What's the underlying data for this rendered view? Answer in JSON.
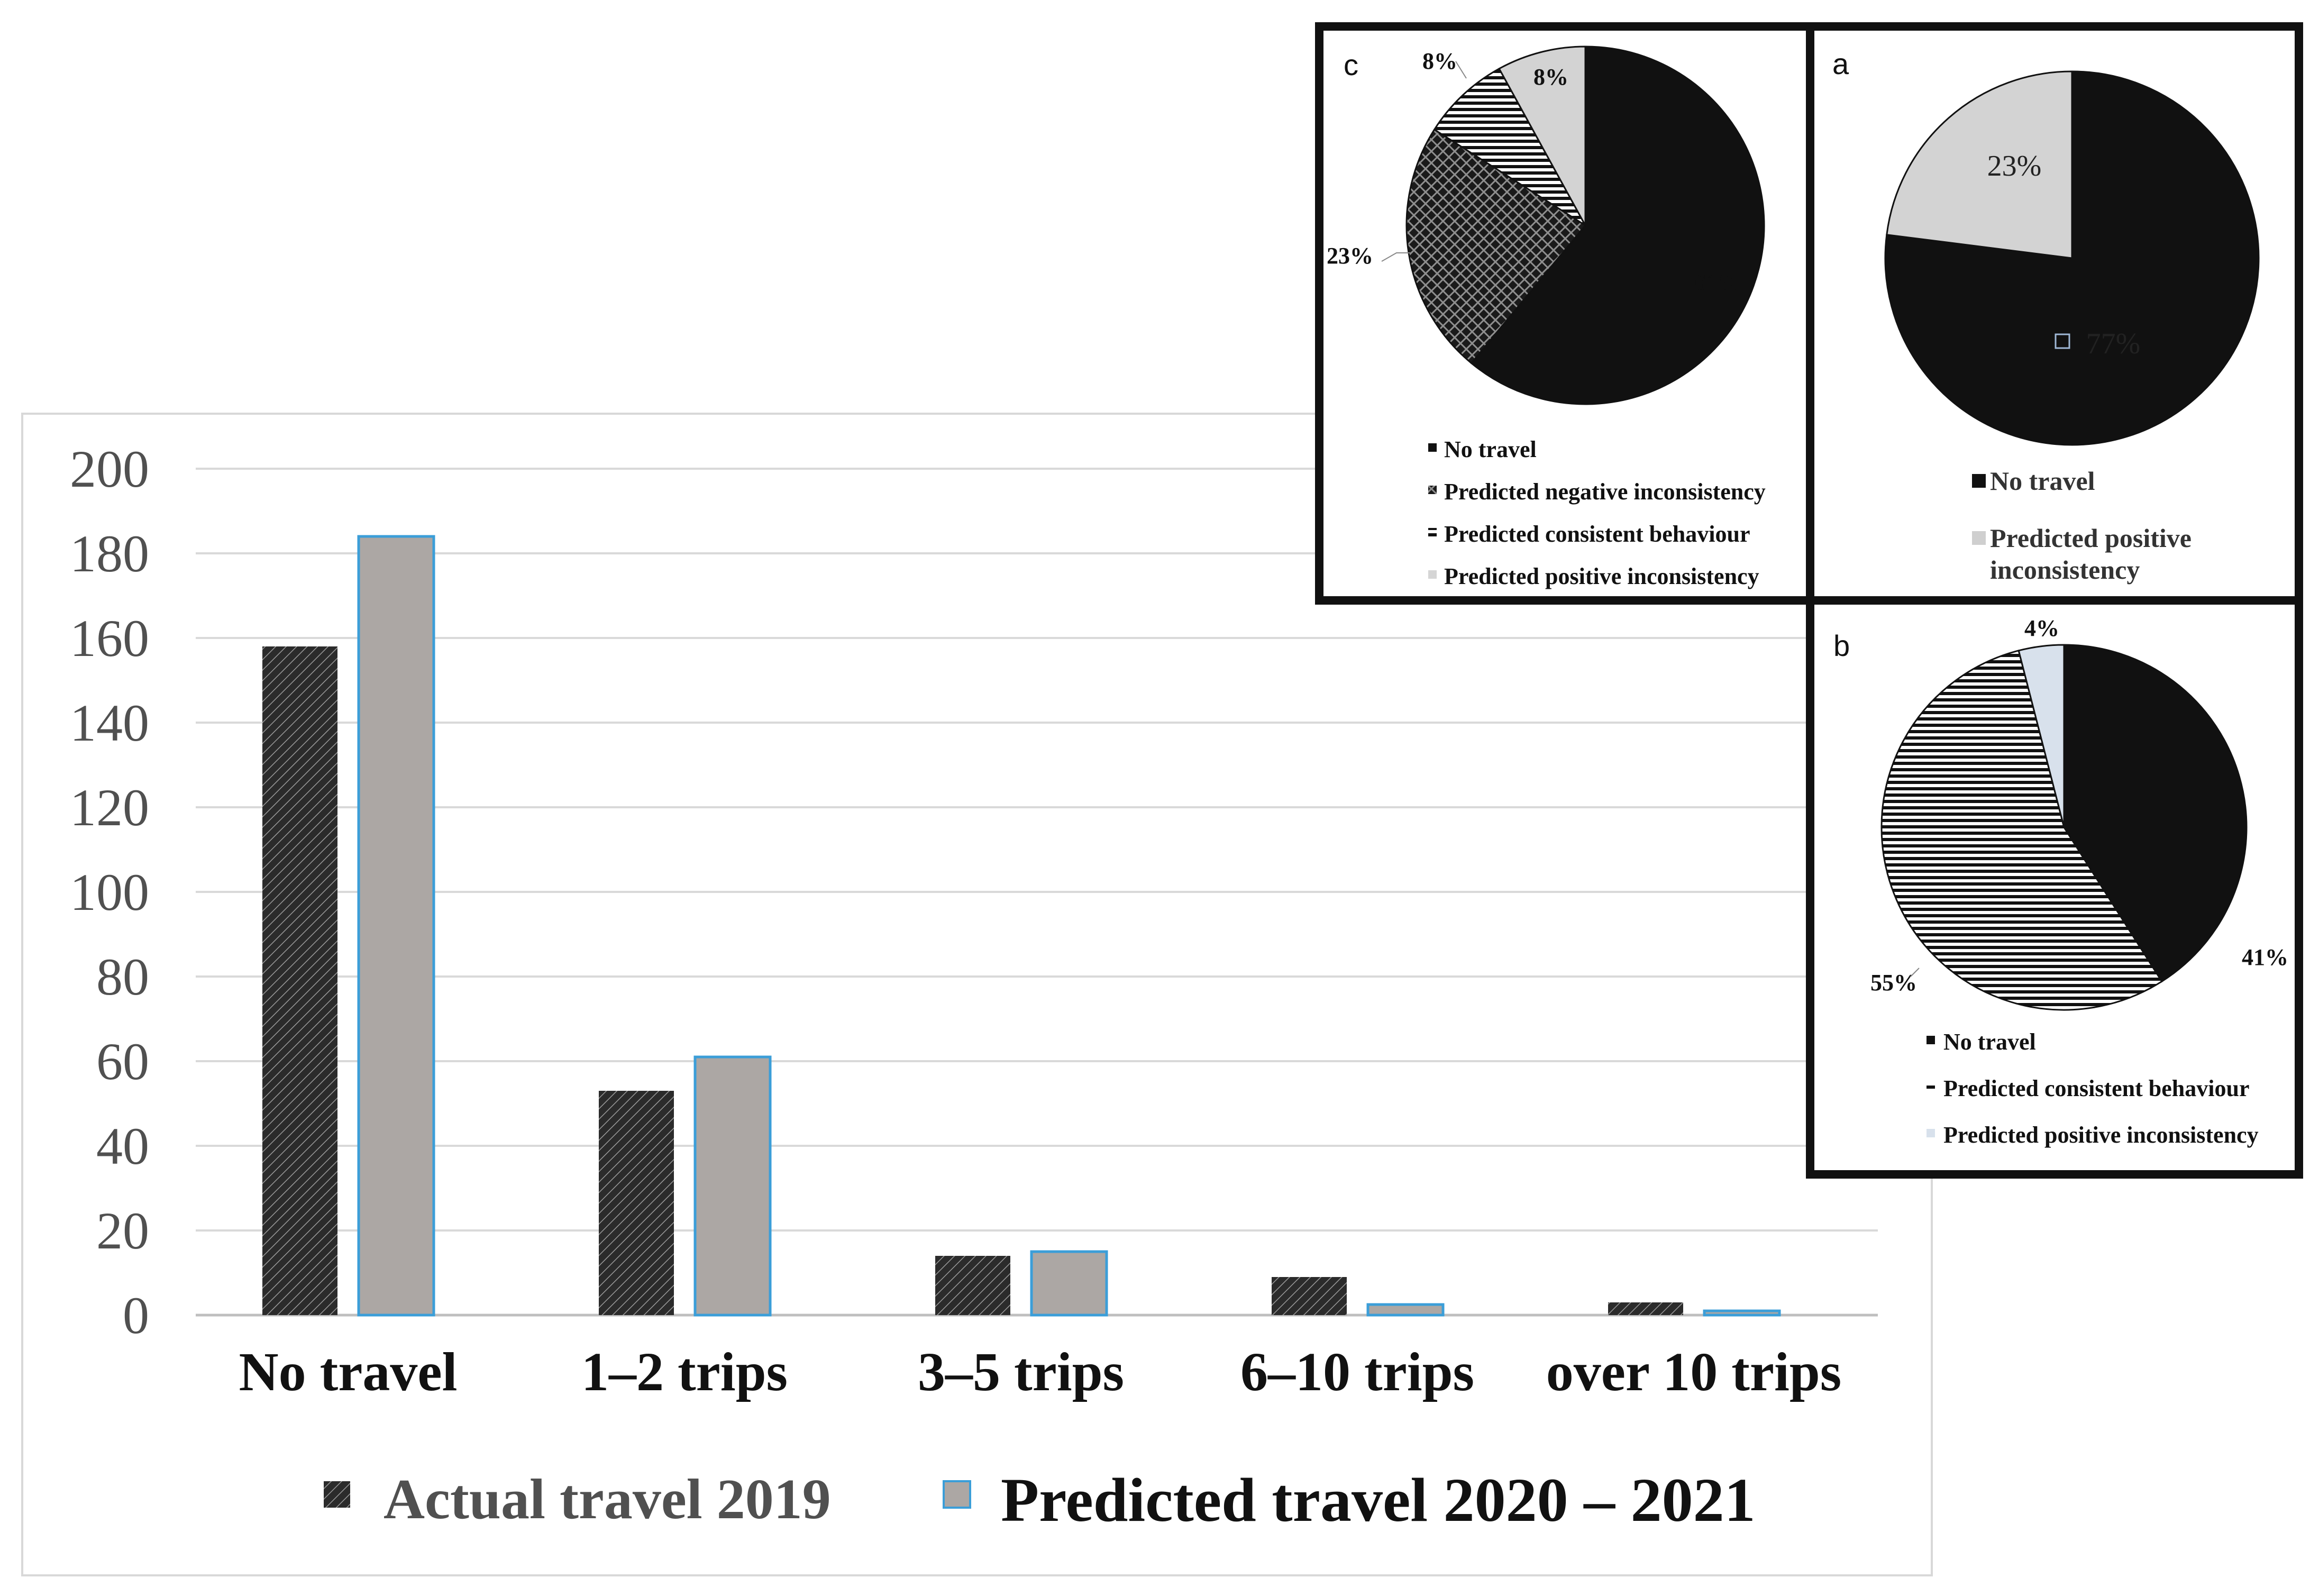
{
  "chart_data": [
    {
      "type": "bar",
      "categories": [
        "No travel",
        "1–2 trips",
        "3–5 trips",
        "6–10 trips",
        "over 10 trips"
      ],
      "series": [
        {
          "name": "Actual travel 2019",
          "values": [
            158,
            53,
            14,
            9,
            3
          ],
          "color": "#2b2b2b",
          "pattern": "diagonal-hatch"
        },
        {
          "name": "Predicted travel 2020 – 2021",
          "values": [
            184,
            61,
            15,
            2.5,
            1
          ],
          "color": "#aca7a4",
          "stroke": "#3b9ed8"
        }
      ],
      "y_ticks": [
        "0",
        "20",
        "40",
        "60",
        "80",
        "100",
        "120",
        "140",
        "160",
        "180",
        "200"
      ],
      "ylim": [
        0,
        200
      ],
      "grid": true,
      "legend": "bottom"
    },
    {
      "type": "pie",
      "panel": "c",
      "slices": [
        {
          "name": "No travel",
          "value": 61,
          "label": "61%",
          "fill": "black"
        },
        {
          "name": "Predicted negative inconsistency",
          "value": 23,
          "label": "23%",
          "fill": "crosshatch"
        },
        {
          "name": "Predicted consistent behaviour",
          "value": 8,
          "label": "8%",
          "fill": "stripes"
        },
        {
          "name": "Predicted positive inconsistency",
          "value": 8,
          "label": "8%",
          "fill": "lightgray"
        }
      ],
      "legend": "bottom"
    },
    {
      "type": "pie",
      "panel": "a",
      "slices": [
        {
          "name": "No travel",
          "value": 77,
          "label": "77%",
          "fill": "black"
        },
        {
          "name": "Predicted positive inconsistency",
          "value": 23,
          "label": "23%",
          "fill": "lightgray"
        }
      ],
      "legend": "bottom"
    },
    {
      "type": "pie",
      "panel": "b",
      "slices": [
        {
          "name": "No travel",
          "value": 41,
          "label": "41%",
          "fill": "black"
        },
        {
          "name": "Predicted consistent behaviour",
          "value": 55,
          "label": "55%",
          "fill": "stripes"
        },
        {
          "name": "Predicted positive inconsistency",
          "value": 4,
          "label": "4%",
          "fill": "lightblue"
        }
      ],
      "legend": "bottom"
    }
  ],
  "legends": {
    "c": [
      "No travel",
      "Predicted negative inconsistency",
      "Predicted consistent behaviour",
      "Predicted positive inconsistency"
    ],
    "a": [
      "No travel",
      "Predicted positive",
      "inconsistency"
    ],
    "b": [
      "No travel",
      "Predicted consistent behaviour",
      "Predicted positive inconsistency"
    ]
  },
  "panel_letters": {
    "a": "a",
    "b": "b",
    "c": "c"
  }
}
